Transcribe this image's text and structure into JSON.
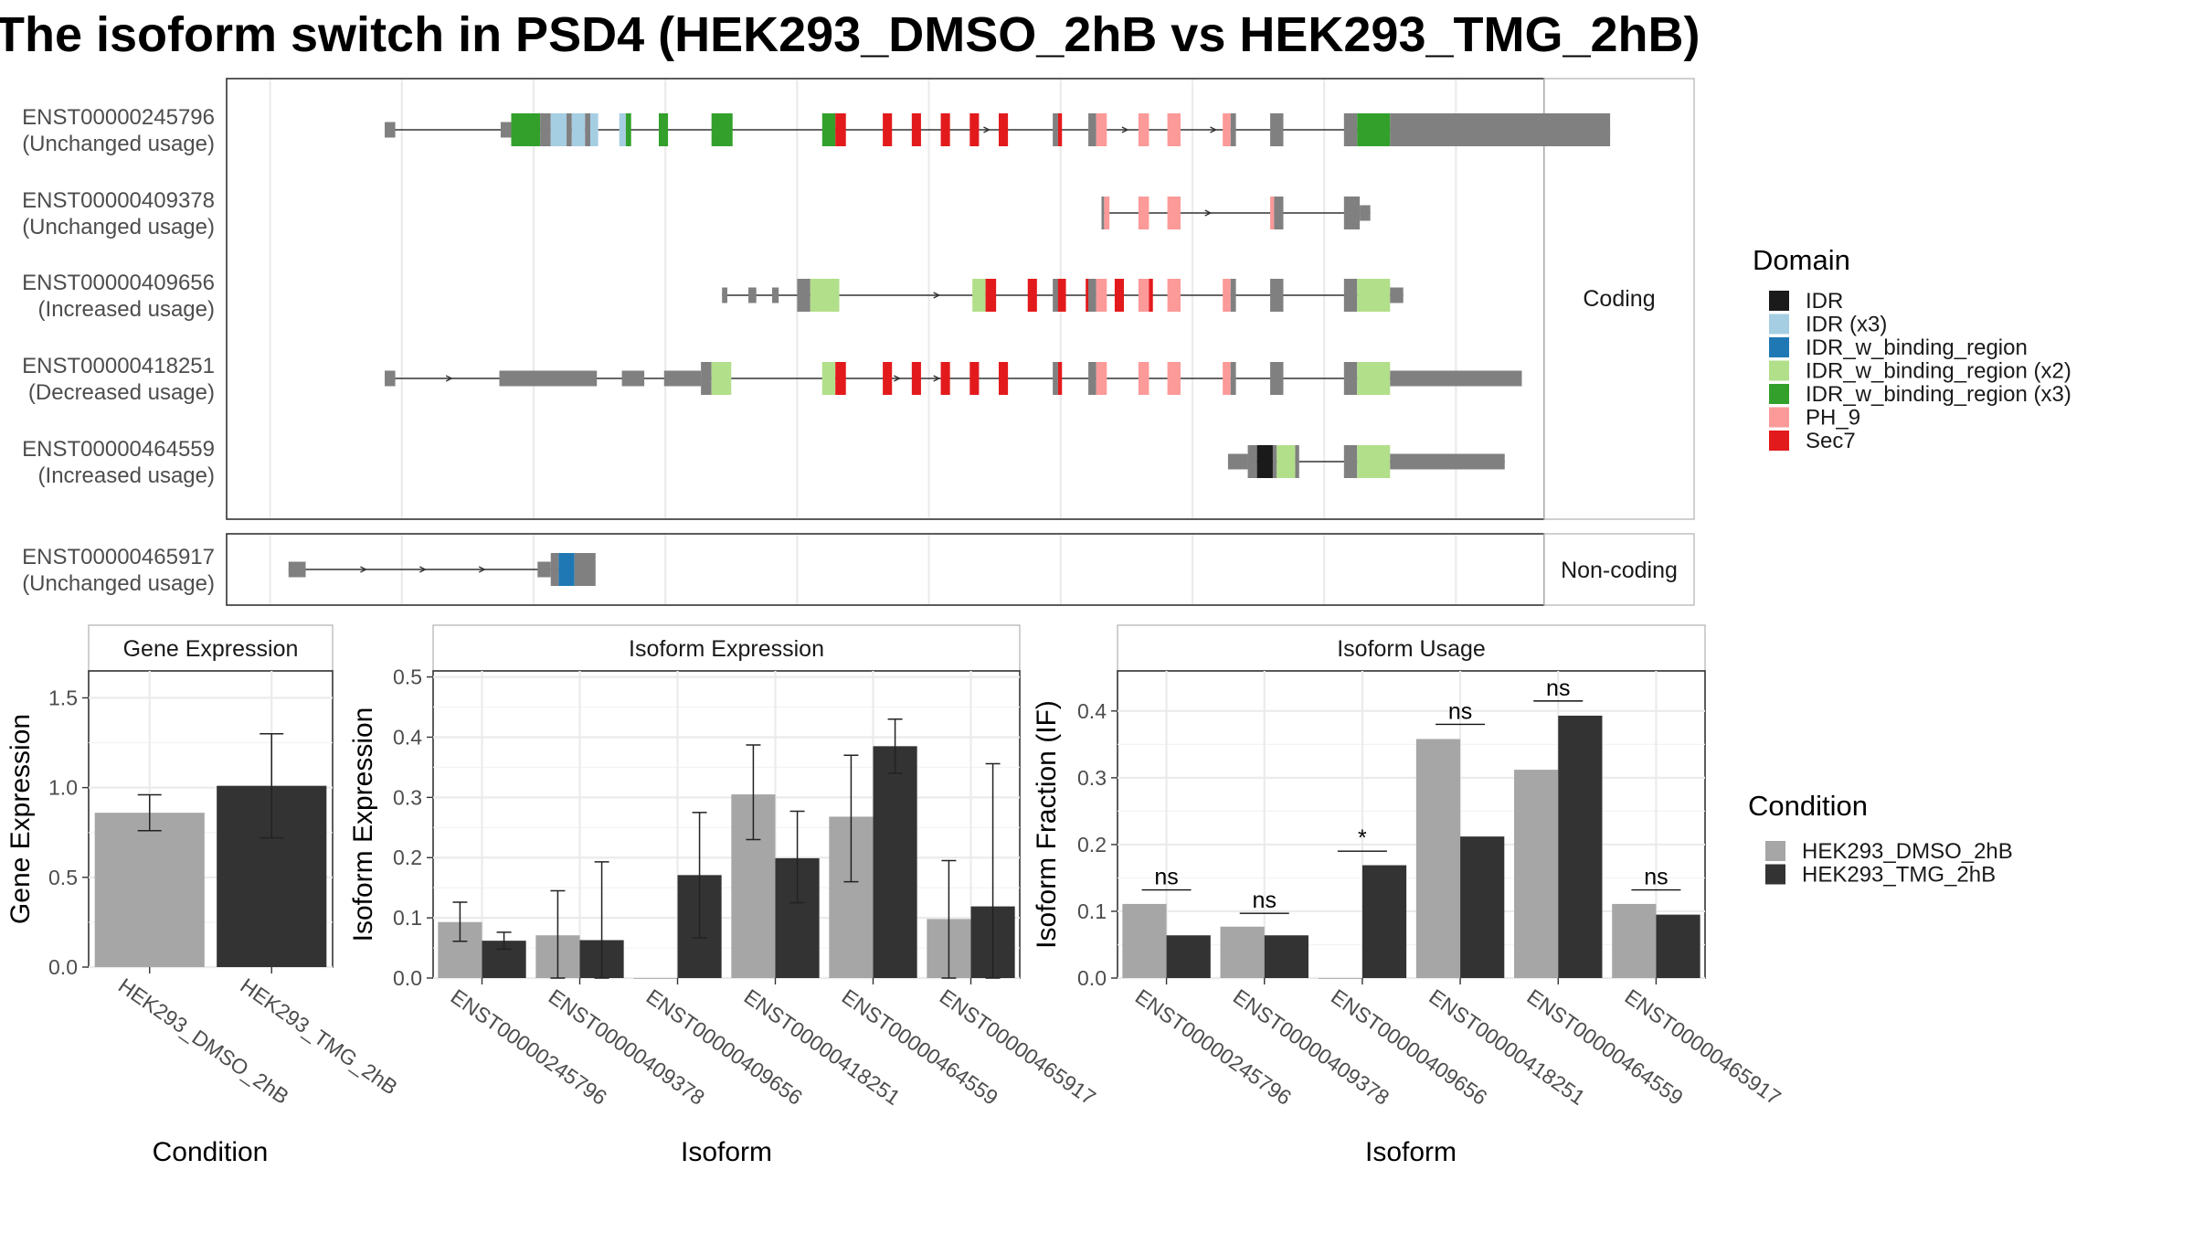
{
  "title": "The isoform switch in PSD4 (HEK293_DMSO_2hB vs HEK293_TMG_2hB)",
  "colors": {
    "exon": "#808080",
    "intron": "#333333",
    "IDR": "#1a1a1a",
    "IDR_x3": "#a6cee3",
    "IDR_w_binding_region": "#1f78b4",
    "IDR_w_binding_region_x2": "#b2df8a",
    "IDR_w_binding_region_x3": "#33a02c",
    "PH_9": "#fb9a99",
    "Sec7": "#e31a1c",
    "cond_dmso": "#a6a6a6",
    "cond_tmg": "#333333",
    "grid": "#ebebeb"
  },
  "structure": {
    "xrange": [
      0,
      1000
    ],
    "facets": [
      "Coding",
      "Non-coding"
    ],
    "isoforms": [
      {
        "id": "ENST00000245796",
        "usage": "(Unchanged usage)",
        "facet": "Coding",
        "introns": [
          [
            120,
            1050
          ]
        ],
        "arrows": [
          220,
          262,
          578,
          683,
          750
        ],
        "features": [
          {
            "s": 120,
            "e": 128,
            "h": "small",
            "c": "exon"
          },
          {
            "s": 208,
            "e": 216,
            "h": "small",
            "c": "exon"
          },
          {
            "s": 216,
            "e": 238,
            "h": "large",
            "c": "IDR_w_binding_region_x3"
          },
          {
            "s": 238,
            "e": 246,
            "h": "large",
            "c": "exon"
          },
          {
            "s": 246,
            "e": 258,
            "h": "large",
            "c": "IDR_x3"
          },
          {
            "s": 258,
            "e": 262,
            "h": "large",
            "c": "exon"
          },
          {
            "s": 262,
            "e": 272,
            "h": "large",
            "c": "IDR_x3"
          },
          {
            "s": 272,
            "e": 276,
            "h": "large",
            "c": "exon"
          },
          {
            "s": 276,
            "e": 282,
            "h": "large",
            "c": "IDR_x3"
          },
          {
            "s": 298,
            "e": 303,
            "h": "large",
            "c": "IDR_x3"
          },
          {
            "s": 303,
            "e": 307,
            "h": "large",
            "c": "IDR_w_binding_region_x3"
          },
          {
            "s": 328,
            "e": 335,
            "h": "large",
            "c": "IDR_w_binding_region_x3"
          },
          {
            "s": 368,
            "e": 384,
            "h": "large",
            "c": "IDR_w_binding_region_x3"
          },
          {
            "s": 452,
            "e": 462,
            "h": "large",
            "c": "IDR_w_binding_region_x3"
          },
          {
            "s": 462,
            "e": 470,
            "h": "large",
            "c": "Sec7"
          },
          {
            "s": 498,
            "e": 505,
            "h": "large",
            "c": "Sec7"
          },
          {
            "s": 520,
            "e": 527,
            "h": "large",
            "c": "Sec7"
          },
          {
            "s": 542,
            "e": 549,
            "h": "large",
            "c": "Sec7"
          },
          {
            "s": 564,
            "e": 571,
            "h": "large",
            "c": "Sec7"
          },
          {
            "s": 586,
            "e": 593,
            "h": "large",
            "c": "Sec7"
          },
          {
            "s": 627,
            "e": 631,
            "h": "large",
            "c": "exon"
          },
          {
            "s": 631,
            "e": 634,
            "h": "large",
            "c": "Sec7"
          },
          {
            "s": 654,
            "e": 660,
            "h": "large",
            "c": "exon"
          },
          {
            "s": 660,
            "e": 668,
            "h": "large",
            "c": "PH_9"
          },
          {
            "s": 692,
            "e": 700,
            "h": "large",
            "c": "PH_9"
          },
          {
            "s": 714,
            "e": 724,
            "h": "large",
            "c": "PH_9"
          },
          {
            "s": 756,
            "e": 762,
            "h": "large",
            "c": "PH_9"
          },
          {
            "s": 762,
            "e": 766,
            "h": "large",
            "c": "exon"
          },
          {
            "s": 792,
            "e": 802,
            "h": "large",
            "c": "exon"
          },
          {
            "s": 848,
            "e": 858,
            "h": "large",
            "c": "exon"
          },
          {
            "s": 858,
            "e": 883,
            "h": "large",
            "c": "IDR_w_binding_region_x3"
          },
          {
            "s": 883,
            "e": 1050,
            "h": "large",
            "c": "exon"
          }
        ]
      },
      {
        "id": "ENST00000409378",
        "usage": "(Unchanged usage)",
        "facet": "Coding",
        "introns": [
          [
            664,
            868
          ]
        ],
        "arrows": [
          746
        ],
        "features": [
          {
            "s": 664,
            "e": 666,
            "h": "large",
            "c": "exon"
          },
          {
            "s": 666,
            "e": 670,
            "h": "large",
            "c": "PH_9"
          },
          {
            "s": 692,
            "e": 700,
            "h": "large",
            "c": "PH_9"
          },
          {
            "s": 714,
            "e": 724,
            "h": "large",
            "c": "PH_9"
          },
          {
            "s": 792,
            "e": 795,
            "h": "large",
            "c": "PH_9"
          },
          {
            "s": 795,
            "e": 802,
            "h": "large",
            "c": "exon"
          },
          {
            "s": 848,
            "e": 860,
            "h": "large",
            "c": "exon"
          },
          {
            "s": 860,
            "e": 868,
            "h": "small",
            "c": "exon"
          }
        ]
      },
      {
        "id": "ENST00000409656",
        "usage": "(Increased usage)",
        "facet": "Coding",
        "introns": [
          [
            376,
            893
          ]
        ],
        "arrows": [
          440,
          540
        ],
        "features": [
          {
            "s": 376,
            "e": 380,
            "h": "small",
            "c": "exon"
          },
          {
            "s": 396,
            "e": 402,
            "h": "small",
            "c": "exon"
          },
          {
            "s": 414,
            "e": 419,
            "h": "small",
            "c": "exon"
          },
          {
            "s": 433,
            "e": 443,
            "h": "large",
            "c": "exon"
          },
          {
            "s": 443,
            "e": 465,
            "h": "large",
            "c": "IDR_w_binding_region_x2"
          },
          {
            "s": 566,
            "e": 576,
            "h": "large",
            "c": "IDR_w_binding_region_x2"
          },
          {
            "s": 576,
            "e": 584,
            "h": "large",
            "c": "Sec7"
          },
          {
            "s": 608,
            "e": 615,
            "h": "large",
            "c": "Sec7"
          },
          {
            "s": 630,
            "e": 637,
            "h": "large",
            "c": "Sec7"
          },
          {
            "s": 652,
            "e": 659,
            "h": "large",
            "c": "Sec7"
          },
          {
            "s": 674,
            "e": 681,
            "h": "large",
            "c": "Sec7"
          },
          {
            "s": 696,
            "e": 703,
            "h": "large",
            "c": "Sec7"
          },
          {
            "s": 627,
            "e": 631,
            "h": "large",
            "c": "exon"
          },
          {
            "s": 631,
            "e": 634,
            "h": "large",
            "c": "Sec7"
          },
          {
            "s": 654,
            "e": 660,
            "h": "large",
            "c": "exon"
          },
          {
            "s": 660,
            "e": 668,
            "h": "large",
            "c": "PH_9"
          },
          {
            "s": 692,
            "e": 700,
            "h": "large",
            "c": "PH_9"
          },
          {
            "s": 714,
            "e": 724,
            "h": "large",
            "c": "PH_9"
          },
          {
            "s": 756,
            "e": 762,
            "h": "large",
            "c": "PH_9"
          },
          {
            "s": 762,
            "e": 766,
            "h": "large",
            "c": "exon"
          },
          {
            "s": 792,
            "e": 802,
            "h": "large",
            "c": "exon"
          },
          {
            "s": 848,
            "e": 858,
            "h": "large",
            "c": "exon"
          },
          {
            "s": 858,
            "e": 883,
            "h": "large",
            "c": "IDR_w_binding_region_x2"
          },
          {
            "s": 883,
            "e": 893,
            "h": "small",
            "c": "exon"
          }
        ]
      },
      {
        "id": "ENST00000418251",
        "usage": "(Decreased usage)",
        "facet": "Coding",
        "introns": [
          [
            120,
            983
          ]
        ],
        "arrows": [
          170,
          220,
          510,
          540
        ],
        "features": [
          {
            "s": 120,
            "e": 128,
            "h": "small",
            "c": "exon"
          },
          {
            "s": 207,
            "e": 281,
            "h": "small",
            "c": "exon"
          },
          {
            "s": 300,
            "e": 317,
            "h": "small",
            "c": "exon"
          },
          {
            "s": 332,
            "e": 360,
            "h": "small",
            "c": "exon"
          },
          {
            "s": 360,
            "e": 368,
            "h": "large",
            "c": "exon"
          },
          {
            "s": 368,
            "e": 383,
            "h": "large",
            "c": "IDR_w_binding_region_x2"
          },
          {
            "s": 452,
            "e": 462,
            "h": "large",
            "c": "IDR_w_binding_region_x2"
          },
          {
            "s": 462,
            "e": 470,
            "h": "large",
            "c": "Sec7"
          },
          {
            "s": 498,
            "e": 505,
            "h": "large",
            "c": "Sec7"
          },
          {
            "s": 520,
            "e": 527,
            "h": "large",
            "c": "Sec7"
          },
          {
            "s": 542,
            "e": 549,
            "h": "large",
            "c": "Sec7"
          },
          {
            "s": 564,
            "e": 571,
            "h": "large",
            "c": "Sec7"
          },
          {
            "s": 586,
            "e": 593,
            "h": "large",
            "c": "Sec7"
          },
          {
            "s": 627,
            "e": 631,
            "h": "large",
            "c": "exon"
          },
          {
            "s": 631,
            "e": 634,
            "h": "large",
            "c": "Sec7"
          },
          {
            "s": 654,
            "e": 660,
            "h": "large",
            "c": "exon"
          },
          {
            "s": 660,
            "e": 668,
            "h": "large",
            "c": "PH_9"
          },
          {
            "s": 692,
            "e": 700,
            "h": "large",
            "c": "PH_9"
          },
          {
            "s": 714,
            "e": 724,
            "h": "large",
            "c": "PH_9"
          },
          {
            "s": 756,
            "e": 762,
            "h": "large",
            "c": "PH_9"
          },
          {
            "s": 762,
            "e": 766,
            "h": "large",
            "c": "exon"
          },
          {
            "s": 792,
            "e": 802,
            "h": "large",
            "c": "exon"
          },
          {
            "s": 848,
            "e": 858,
            "h": "large",
            "c": "exon"
          },
          {
            "s": 858,
            "e": 883,
            "h": "large",
            "c": "IDR_w_binding_region_x2"
          },
          {
            "s": 883,
            "e": 983,
            "h": "small",
            "c": "exon"
          }
        ]
      },
      {
        "id": "ENST00000464559",
        "usage": "(Increased usage)",
        "facet": "Coding",
        "introns": [
          [
            760,
            970
          ]
        ],
        "arrows": [],
        "features": [
          {
            "s": 760,
            "e": 775,
            "h": "small",
            "c": "exon"
          },
          {
            "s": 775,
            "e": 782,
            "h": "large",
            "c": "exon"
          },
          {
            "s": 782,
            "e": 794,
            "h": "large",
            "c": "IDR"
          },
          {
            "s": 794,
            "e": 797,
            "h": "large",
            "c": "exon"
          },
          {
            "s": 797,
            "e": 811,
            "h": "large",
            "c": "IDR_w_binding_region_x2"
          },
          {
            "s": 811,
            "e": 814,
            "h": "large",
            "c": "exon"
          },
          {
            "s": 848,
            "e": 858,
            "h": "large",
            "c": "exon"
          },
          {
            "s": 858,
            "e": 883,
            "h": "large",
            "c": "IDR_w_binding_region_x2"
          },
          {
            "s": 883,
            "e": 970,
            "h": "small",
            "c": "exon"
          }
        ]
      },
      {
        "id": "ENST00000465917",
        "usage": "(Unchanged usage)",
        "facet": "Non-coding",
        "introns": [
          [
            47,
            264
          ]
        ],
        "arrows": [
          105,
          150,
          195
        ],
        "features": [
          {
            "s": 47,
            "e": 60,
            "h": "small",
            "c": "exon"
          },
          {
            "s": 236,
            "e": 246,
            "h": "small",
            "c": "exon"
          },
          {
            "s": 246,
            "e": 252,
            "h": "large",
            "c": "exon"
          },
          {
            "s": 252,
            "e": 264,
            "h": "large",
            "c": "IDR_w_binding_region"
          },
          {
            "s": 264,
            "e": 280,
            "h": "large",
            "c": "exon"
          }
        ]
      }
    ]
  },
  "domain_legend": {
    "title": "Domain",
    "items": [
      {
        "label": "IDR",
        "color": "#1a1a1a"
      },
      {
        "label": "IDR (x3)",
        "color": "#a6cee3"
      },
      {
        "label": "IDR_w_binding_region",
        "color": "#1f78b4"
      },
      {
        "label": "IDR_w_binding_region (x2)",
        "color": "#b2df8a"
      },
      {
        "label": "IDR_w_binding_region (x3)",
        "color": "#33a02c"
      },
      {
        "label": "PH_9",
        "color": "#fb9a99"
      },
      {
        "label": "Sec7",
        "color": "#e31a1c"
      }
    ]
  },
  "condition_legend": {
    "title": "Condition",
    "items": [
      {
        "label": "HEK293_DMSO_2hB",
        "color": "#a6a6a6"
      },
      {
        "label": "HEK293_TMG_2hB",
        "color": "#333333"
      }
    ]
  },
  "chart_data": [
    {
      "type": "bar",
      "title": "Gene Expression",
      "xlabel": "Condition",
      "ylabel": "Gene Expression",
      "categories": [
        "HEK293_DMSO_2hB",
        "HEK293_TMG_2hB"
      ],
      "values": [
        0.86,
        1.01
      ],
      "error_low": [
        0.76,
        0.72
      ],
      "error_high": [
        0.96,
        1.3
      ],
      "ylim": [
        0,
        1.65
      ],
      "yticks": [
        "0.0",
        "0.5",
        "1.0",
        "1.5"
      ],
      "ytick_values": [
        0,
        0.5,
        1.0,
        1.5
      ]
    },
    {
      "type": "bar",
      "title": "Isoform Expression",
      "xlabel": "Isoform",
      "ylabel": "Isoform Expression",
      "categories": [
        "ENST00000245796",
        "ENST00000409378",
        "ENST00000409656",
        "ENST00000418251",
        "ENST00000464559",
        "ENST00000465917"
      ],
      "ylim": [
        0,
        0.51
      ],
      "yticks": [
        "0.0",
        "0.1",
        "0.2",
        "0.3",
        "0.4",
        "0.5"
      ],
      "ytick_values": [
        0,
        0.1,
        0.2,
        0.3,
        0.4,
        0.5
      ],
      "series": [
        {
          "name": "HEK293_DMSO_2hB",
          "values": [
            0.093,
            0.071,
            0.0,
            0.305,
            0.268,
            0.098
          ],
          "error_low": [
            0.061,
            0.0,
            null,
            0.23,
            0.16,
            0.0
          ],
          "error_high": [
            0.126,
            0.145,
            null,
            0.387,
            0.37,
            0.195
          ]
        },
        {
          "name": "HEK293_TMG_2hB",
          "values": [
            0.062,
            0.063,
            0.171,
            0.199,
            0.385,
            0.119
          ],
          "error_low": [
            0.048,
            0.0,
            0.067,
            0.125,
            0.34,
            0.0
          ],
          "error_high": [
            0.076,
            0.193,
            0.275,
            0.277,
            0.43,
            0.356
          ]
        }
      ]
    },
    {
      "type": "bar",
      "title": "Isoform Usage",
      "xlabel": "Isoform",
      "ylabel": "Isoform Fraction (IF)",
      "categories": [
        "ENST00000245796",
        "ENST00000409378",
        "ENST00000409656",
        "ENST00000418251",
        "ENST00000464559",
        "ENST00000465917"
      ],
      "ylim": [
        0,
        0.46
      ],
      "yticks": [
        "0.0",
        "0.1",
        "0.2",
        "0.3",
        "0.4"
      ],
      "ytick_values": [
        0,
        0.1,
        0.2,
        0.3,
        0.4
      ],
      "series": [
        {
          "name": "HEK293_DMSO_2hB",
          "values": [
            0.111,
            0.077,
            0.0,
            0.358,
            0.312,
            0.111
          ]
        },
        {
          "name": "HEK293_TMG_2hB",
          "values": [
            0.064,
            0.064,
            0.169,
            0.212,
            0.393,
            0.095
          ]
        }
      ],
      "significance": [
        "ns",
        "ns",
        "*",
        "ns",
        "ns",
        "ns"
      ],
      "significance_y": [
        0.132,
        0.097,
        0.19,
        0.38,
        0.415,
        0.132
      ]
    }
  ]
}
